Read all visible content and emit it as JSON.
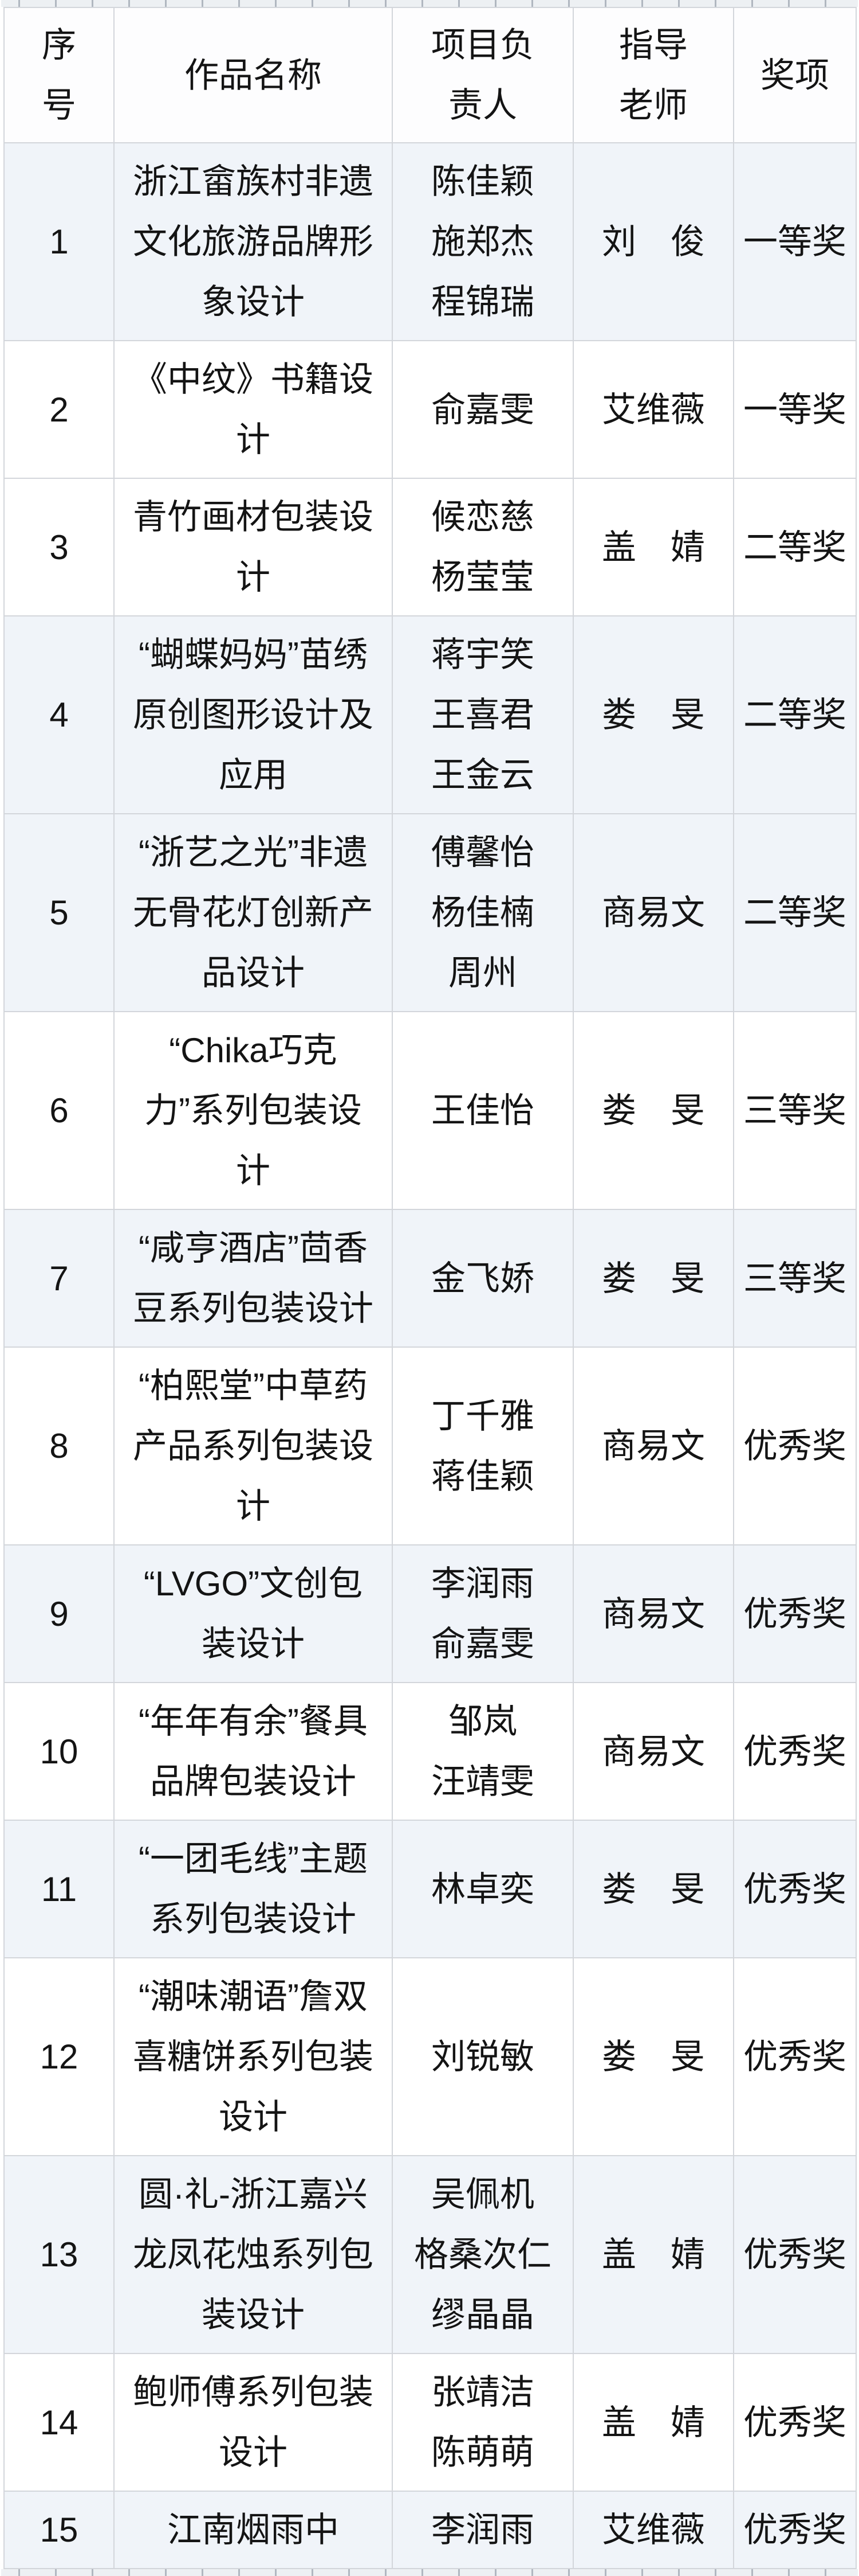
{
  "table": {
    "columns": [
      "序号",
      "作品名称",
      "项目负责人",
      "指导老师",
      "奖项"
    ],
    "rows": [
      {
        "no": "1",
        "title": "浙江畲族村非遗文化旅游品牌形象设计",
        "leaders": [
          "陈佳颖",
          "施郑杰",
          "程锦瑞"
        ],
        "teacher": "刘　俊",
        "award": "一等奖"
      },
      {
        "no": "2",
        "title": "《中纹》书籍设计",
        "leaders": [
          "俞嘉雯"
        ],
        "teacher": "艾维薇",
        "award": "一等奖"
      },
      {
        "no": "3",
        "title": "青竹画材包装设计",
        "leaders": [
          "候恋慈",
          "杨莹莹"
        ],
        "teacher": "盖　婧",
        "award": "二等奖"
      },
      {
        "no": "4",
        "title": "“蝴蝶妈妈”苗绣原创图形设计及应用",
        "leaders": [
          "蒋宇笑",
          "王喜君",
          "王金云"
        ],
        "teacher": "娄　旻",
        "award": "二等奖"
      },
      {
        "no": "5",
        "title": "“浙艺之光”非遗无骨花灯创新产品设计",
        "leaders": [
          "傅馨怡",
          "杨佳楠",
          "周州"
        ],
        "teacher": "商易文",
        "award": "二等奖"
      },
      {
        "no": "6",
        "title": "“Chika巧克力”系列包装设计",
        "leaders": [
          "王佳怡"
        ],
        "teacher": "娄　旻",
        "award": "三等奖"
      },
      {
        "no": "7",
        "title": "“咸亨酒店”茴香豆系列包装设计",
        "leaders": [
          "金飞娇"
        ],
        "teacher": "娄　旻",
        "award": "三等奖"
      },
      {
        "no": "8",
        "title": "“柏熙堂”中草药产品系列包装设计",
        "leaders": [
          "丁千雅",
          "蒋佳颖"
        ],
        "teacher": "商易文",
        "award": "优秀奖"
      },
      {
        "no": "9",
        "title": "“LVGO”文创包装设计",
        "leaders": [
          "李润雨",
          "俞嘉雯"
        ],
        "teacher": "商易文",
        "award": "优秀奖"
      },
      {
        "no": "10",
        "title": "“年年有余”餐具品牌包装设计",
        "leaders": [
          "邹岚",
          "汪靖雯"
        ],
        "teacher": "商易文",
        "award": "优秀奖"
      },
      {
        "no": "11",
        "title": "“一团毛线”主题系列包装设计",
        "leaders": [
          "林卓奕"
        ],
        "teacher": "娄　旻",
        "award": "优秀奖"
      },
      {
        "no": "12",
        "title": "“潮味潮语”詹双喜糖饼系列包装设计",
        "leaders": [
          "刘锐敏"
        ],
        "teacher": "娄　旻",
        "award": "优秀奖"
      },
      {
        "no": "13",
        "title": "圆·礼-浙江嘉兴龙凤花烛系列包装设计",
        "leaders": [
          "吴佩机",
          "格桑次仁",
          "缪晶晶"
        ],
        "teacher": "盖　婧",
        "award": "优秀奖"
      },
      {
        "no": "14",
        "title": "鲍师傅系列包装设计",
        "leaders": [
          "张靖洁",
          "陈萌萌"
        ],
        "teacher": "盖　婧",
        "award": "优秀奖"
      },
      {
        "no": "15",
        "title": "江南烟雨中",
        "leaders": [
          "李润雨"
        ],
        "teacher": "艾维薇",
        "award": "优秀奖"
      }
    ]
  },
  "colors": {
    "shaded_row_bg": "#f0f4f9",
    "plain_row_bg": "#ffffff",
    "border": "#d3d6db",
    "text": "#141414"
  }
}
